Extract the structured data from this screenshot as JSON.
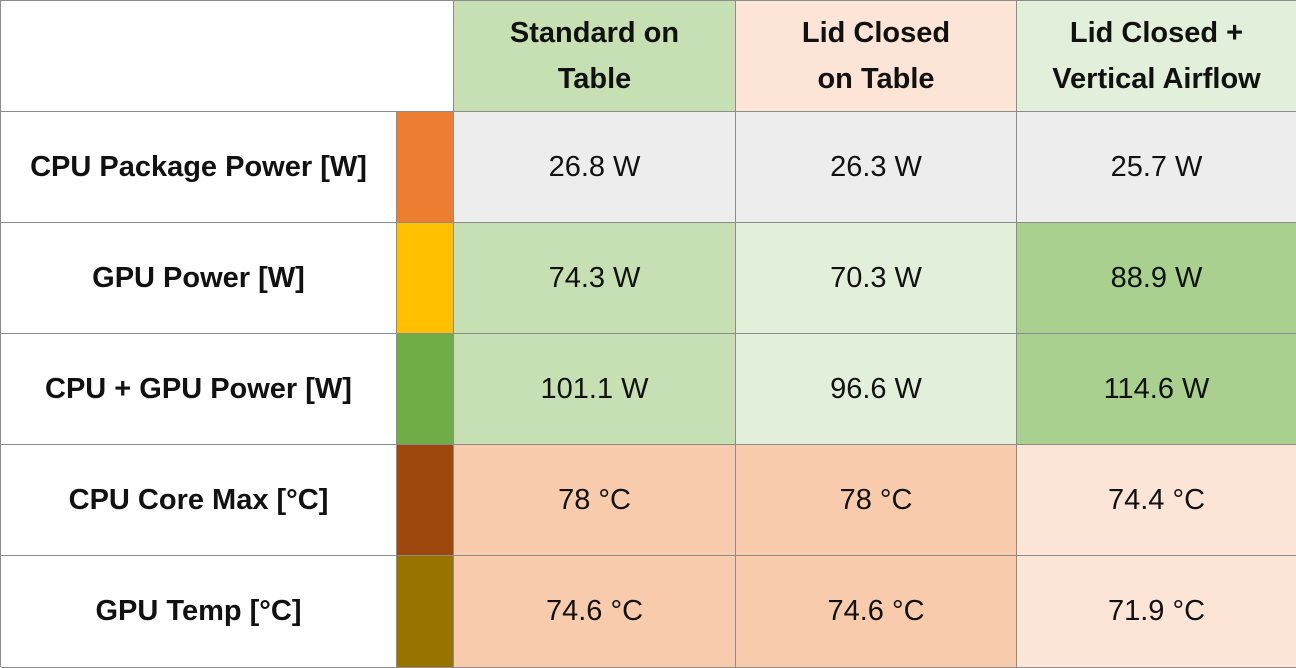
{
  "chart_data": {
    "type": "table",
    "columns": [
      {
        "label": "Standard on Table",
        "lines": [
          "Standard on",
          "Table"
        ],
        "color": "#c6e0b4"
      },
      {
        "label": "Lid Closed on Table",
        "lines": [
          "Lid Closed",
          "on Table"
        ],
        "color": "#fce4d6"
      },
      {
        "label": "Lid Closed + Vertical Airflow",
        "lines": [
          "Lid Closed +",
          "Vertical Airflow"
        ],
        "color": "#e2efda"
      }
    ],
    "rows": [
      {
        "label": "CPU Package Power [W]",
        "swatch": "#ed7d31",
        "values": [
          26.8,
          26.3,
          25.7
        ],
        "unit": "W",
        "display": [
          "26.8 W",
          "26.3 W",
          "25.7 W"
        ],
        "cell_colors": [
          "#ededed",
          "#ededed",
          "#ededed"
        ]
      },
      {
        "label": "GPU Power [W]",
        "swatch": "#ffc000",
        "values": [
          74.3,
          70.3,
          88.9
        ],
        "unit": "W",
        "display": [
          "74.3 W",
          "70.3 W",
          "88.9 W"
        ],
        "cell_colors": [
          "#c6e0b4",
          "#e2efda",
          "#a9d08e"
        ]
      },
      {
        "label": "CPU + GPU Power [W]",
        "swatch": "#70ad47",
        "values": [
          101.1,
          96.6,
          114.6
        ],
        "unit": "W",
        "display": [
          "101.1 W",
          "96.6 W",
          "114.6 W"
        ],
        "cell_colors": [
          "#c6e0b4",
          "#e2efda",
          "#a9d08e"
        ]
      },
      {
        "label": "CPU Core Max [°C]",
        "swatch": "#9e480e",
        "values": [
          78,
          78,
          74.4
        ],
        "unit": "°C",
        "display": [
          "78 °C",
          "78 °C",
          "74.4 °C"
        ],
        "cell_colors": [
          "#f8cbad",
          "#f8cbad",
          "#fce4d6"
        ]
      },
      {
        "label": "GPU Temp [°C]",
        "swatch": "#997300",
        "values": [
          74.6,
          74.6,
          71.9
        ],
        "unit": "°C",
        "display": [
          "74.6 °C",
          "74.6 °C",
          "71.9 °C"
        ],
        "cell_colors": [
          "#f8cbad",
          "#f8cbad",
          "#fce4d6"
        ]
      }
    ]
  }
}
